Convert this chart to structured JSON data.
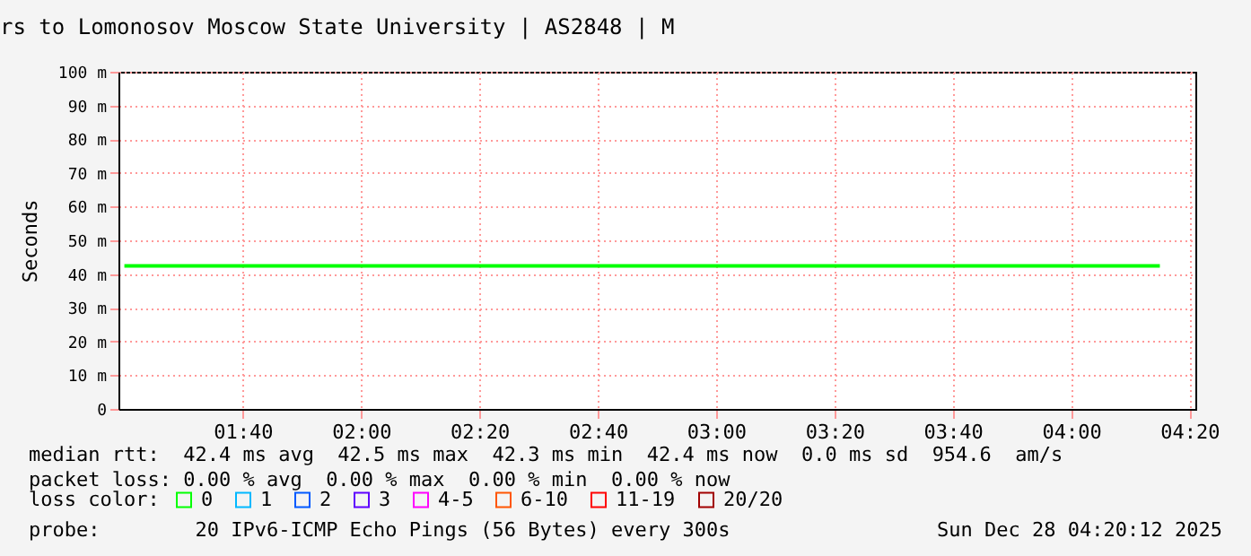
{
  "chart_data": {
    "type": "line",
    "title": "rs to Lomonosov Moscow State University | AS2848 | M",
    "ylabel": "Seconds",
    "legend_title": "loss color:",
    "legend": "bottom",
    "x": [
      "2025-12-28T01:20",
      "2025-12-28T01:40",
      "2025-12-28T02:00",
      "2025-12-28T02:20",
      "2025-12-28T02:40",
      "2025-12-28T03:00",
      "2025-12-28T03:20",
      "2025-12-28T03:40",
      "2025-12-28T04:00",
      "2025-12-28T04:15"
    ],
    "series": [
      {
        "name": "0",
        "color": "#00ff00",
        "values": [
          42.4,
          42.4,
          42.4,
          42.4,
          42.4,
          42.4,
          42.4,
          42.4,
          42.4,
          42.4
        ]
      },
      {
        "name": "1",
        "color": "#00b8ff",
        "values": [
          null,
          null,
          null,
          null,
          null,
          null,
          null,
          null,
          null,
          null
        ]
      },
      {
        "name": "2",
        "color": "#0059ff",
        "values": [
          null,
          null,
          null,
          null,
          null,
          null,
          null,
          null,
          null,
          null
        ]
      },
      {
        "name": "3",
        "color": "#5e00ff",
        "values": [
          null,
          null,
          null,
          null,
          null,
          null,
          null,
          null,
          null,
          null
        ]
      },
      {
        "name": "4-5",
        "color": "#ff00fe",
        "values": [
          null,
          null,
          null,
          null,
          null,
          null,
          null,
          null,
          null,
          null
        ]
      },
      {
        "name": "6-10",
        "color": "#ff5500",
        "values": [
          null,
          null,
          null,
          null,
          null,
          null,
          null,
          null,
          null,
          null
        ]
      },
      {
        "name": "11-19",
        "color": "#ff0000",
        "values": [
          null,
          null,
          null,
          null,
          null,
          null,
          null,
          null,
          null,
          null
        ]
      },
      {
        "name": "20/20",
        "color": "#a10000",
        "values": [
          null,
          null,
          null,
          null,
          null,
          null,
          null,
          null,
          null,
          null
        ]
      }
    ],
    "xlim": [
      "2025-12-28T01:19",
      "2025-12-28T04:21"
    ],
    "xticks": [
      {
        "value": "2025-12-28T01:40",
        "label": "01:40"
      },
      {
        "value": "2025-12-28T02:00",
        "label": "02:00"
      },
      {
        "value": "2025-12-28T02:20",
        "label": "02:20"
      },
      {
        "value": "2025-12-28T02:40",
        "label": "02:40"
      },
      {
        "value": "2025-12-28T03:00",
        "label": "03:00"
      },
      {
        "value": "2025-12-28T03:20",
        "label": "03:20"
      },
      {
        "value": "2025-12-28T03:40",
        "label": "03:40"
      },
      {
        "value": "2025-12-28T04:00",
        "label": "04:00"
      },
      {
        "value": "2025-12-28T04:20",
        "label": "04:20"
      }
    ],
    "ylim": [
      0,
      100
    ],
    "yticks": [
      0,
      {
        "value": 10,
        "label": "10 m"
      },
      {
        "value": 20,
        "label": "20 m"
      },
      {
        "value": 30,
        "label": "30 m"
      },
      {
        "value": 40,
        "label": "40 m"
      },
      {
        "value": 50,
        "label": "50 m"
      },
      {
        "value": 60,
        "label": "60 m"
      },
      {
        "value": 70,
        "label": "70 m"
      },
      {
        "value": 80,
        "label": "80 m"
      },
      {
        "value": 90,
        "label": "90 m"
      },
      {
        "value": 100,
        "label": "100 m"
      }
    ],
    "grid": true,
    "line_style": "solid",
    "annotations": [
      "median rtt:  42.4 ms avg  42.5 ms max  42.3 ms min  42.4 ms now  0.0 ms sd  954.6  am/s",
      "packet loss: 0.00 % avg  0.00 % max  0.00 % min  0.00 % now",
      "probe:        20 IPv6-ICMP Echo Pings (56 Bytes) every 300s",
      "Sun Dec 28 04:20:12 2025"
    ]
  }
}
